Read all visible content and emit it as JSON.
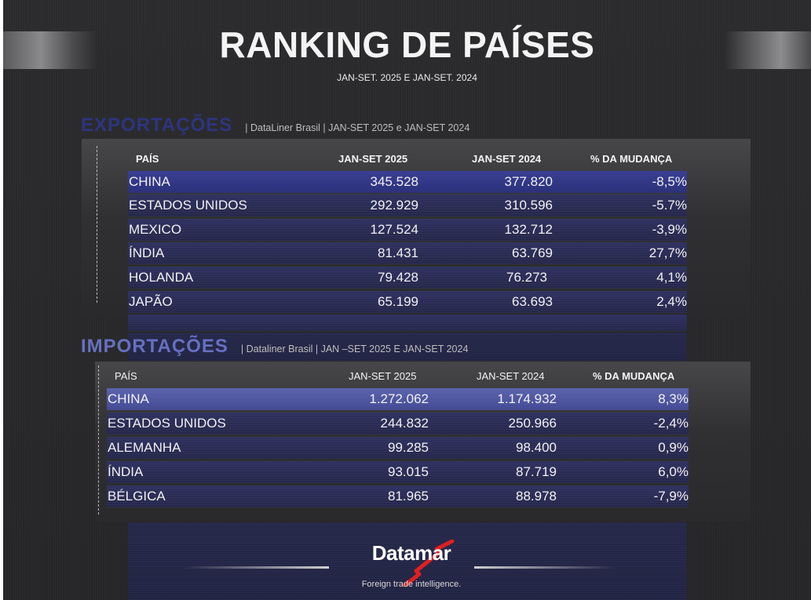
{
  "title": "RANKING DE PAÍSES",
  "subtitle": "JAN-SET. 2025 E JAN-SET. 2024",
  "exports": {
    "label": "EXPORTAÇÕES",
    "meta": "|  DataLiner Brasil  | JAN-SET 2025 e JAN-SET 2024",
    "headers": [
      "PAÍS",
      "JAN-SET 2025",
      "JAN-SET 2024",
      "% DA MUDANÇA"
    ],
    "rows": [
      {
        "country": "CHINA",
        "y2025": "345.528",
        "y2024": "377.820",
        "change": "-8,5%"
      },
      {
        "country": "ESTADOS UNIDOS",
        "y2025": "292.929",
        "y2024": "310.596",
        "change": "-5.7%"
      },
      {
        "country": "MEXICO",
        "y2025": "127.524",
        "y2024": "132.712",
        "change": "-3,9%"
      },
      {
        "country": "ÍNDIA",
        "y2025": "81.431",
        "y2024": "63.769",
        "change": "27,7%"
      },
      {
        "country": "HOLANDA",
        "y2025": "79.428",
        "y2024": "76.273",
        "change": "4,1%"
      },
      {
        "country": "JAPÃO",
        "y2025": "65.199",
        "y2024": "63.693",
        "change": "2,4%"
      }
    ]
  },
  "imports": {
    "label": "IMPORTAÇÕES",
    "meta": "| Dataliner Brasil | JAN –SET  2025  E JAN-SET 2024",
    "headers": [
      "PAÍS",
      "JAN-SET 2025",
      "JAN-SET 2024",
      "% DA MUDANÇA"
    ],
    "rows": [
      {
        "country": "CHINA",
        "y2025": "1.272.062",
        "y2024": "1.174.932",
        "change": "8,3%"
      },
      {
        "country": "ESTADOS UNIDOS",
        "y2025": "244.832",
        "y2024": "250.966",
        "change": "-2,4%"
      },
      {
        "country": "ALEMANHA",
        "y2025": "99.285",
        "y2024": "98.400",
        "change": "0,9%"
      },
      {
        "country": "ÍNDIA",
        "y2025": "93.015",
        "y2024": "87.719",
        "change": "6,0%"
      },
      {
        "country": "BÉLGICA",
        "y2025": "81.965",
        "y2024": "88.978",
        "change": "-7,9%"
      }
    ]
  },
  "footer": {
    "brand": "Datamar",
    "tagline": "Foreign trade intelligence.",
    "accent_color": "#e02020"
  }
}
